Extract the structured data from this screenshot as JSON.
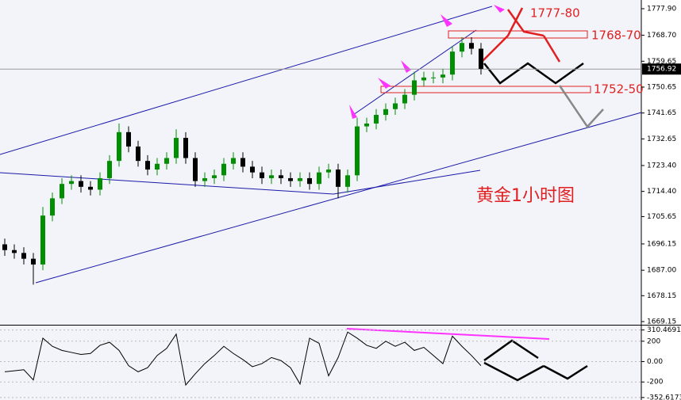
{
  "chart_data": [
    {
      "type": "candlestick",
      "title": "黄金1小时图",
      "annotations": [
        "1777-80",
        "1768-70",
        "1752-50"
      ],
      "last_price": 1756.92,
      "up_color": "#008f00",
      "down_color": "#000000",
      "open": [
        1696,
        1694,
        1693,
        1691,
        1689,
        1706,
        1712,
        1717,
        1718,
        1716,
        1715,
        1719,
        1725,
        1735,
        1730,
        1725,
        1722,
        1724,
        1726,
        1733,
        1726,
        1718,
        1719,
        1720,
        1724,
        1726,
        1723,
        1721,
        1719,
        1720,
        1719,
        1718,
        1719,
        1717,
        1721,
        1722,
        1716,
        1720,
        1737,
        1738,
        1741,
        1743,
        1745,
        1748,
        1753,
        1754,
        1754,
        1755,
        1763,
        1766,
        1764
      ],
      "high": [
        1698,
        1696,
        1695,
        1693,
        1709,
        1714,
        1719,
        1720,
        1720,
        1718,
        1721,
        1727,
        1738,
        1737,
        1732,
        1727,
        1726,
        1728,
        1736,
        1735,
        1728,
        1721,
        1722,
        1726,
        1728,
        1728,
        1725,
        1723,
        1722,
        1722,
        1721,
        1721,
        1721,
        1723,
        1724,
        1724,
        1722,
        1740,
        1740,
        1743,
        1745,
        1747,
        1750,
        1756,
        1756,
        1756,
        1757,
        1765,
        1768,
        1768,
        1766
      ],
      "low": [
        1692,
        1691,
        1689,
        1682,
        1687,
        1704,
        1710,
        1715,
        1714,
        1713,
        1713,
        1717,
        1723,
        1728,
        1723,
        1720,
        1720,
        1722,
        1724,
        1724,
        1716,
        1716,
        1717,
        1718,
        1722,
        1721,
        1719,
        1717,
        1717,
        1717,
        1716,
        1716,
        1715,
        1715,
        1719,
        1712,
        1714,
        1718,
        1735,
        1736,
        1739,
        1741,
        1743,
        1746,
        1751,
        1752,
        1752,
        1753,
        1761,
        1762,
        1755
      ],
      "close": [
        1694,
        1693,
        1691,
        1689,
        1706,
        1712,
        1717,
        1718,
        1716,
        1715,
        1719,
        1725,
        1735,
        1730,
        1725,
        1722,
        1724,
        1726,
        1733,
        1726,
        1718,
        1719,
        1720,
        1724,
        1726,
        1723,
        1721,
        1719,
        1720,
        1719,
        1718,
        1719,
        1717,
        1721,
        1722,
        1716,
        1720,
        1737,
        1738,
        1741,
        1743,
        1745,
        1748,
        1753,
        1754,
        1754,
        1755,
        1763,
        1766,
        1764,
        1757
      ],
      "ylim": [
        1668.05,
        1780.93
      ],
      "yticks": [
        {
          "value": 1777.9,
          "label": "1777.90"
        },
        {
          "value": 1768.7,
          "label": "1768.70"
        },
        1759.65,
        1750.65,
        1741.65,
        1732.65,
        {
          "value": 1723.4,
          "label": "1723.40"
        },
        {
          "value": 1714.4,
          "label": "1714.40"
        },
        1705.65,
        1696.15,
        {
          "value": 1687,
          "label": "1687.00"
        },
        1678.15,
        1669.15
      ]
    },
    {
      "type": "line",
      "color": "#000000",
      "values": [
        -100,
        -90,
        -80,
        -180,
        230,
        150,
        110,
        90,
        70,
        80,
        160,
        190,
        110,
        -40,
        -100,
        -60,
        60,
        130,
        270,
        -230,
        -120,
        -20,
        60,
        150,
        80,
        20,
        -50,
        -20,
        40,
        10,
        -60,
        -220,
        230,
        180,
        -140,
        40,
        290,
        230,
        160,
        130,
        200,
        150,
        190,
        110,
        140,
        60,
        -20,
        250,
        150,
        60,
        -40
      ],
      "ylim": [
        -377,
        354
      ],
      "yticks": [
        310.4691,
        200,
        {
          "value": 0,
          "label": "0.00"
        },
        -200,
        -352.6173
      ]
    }
  ]
}
